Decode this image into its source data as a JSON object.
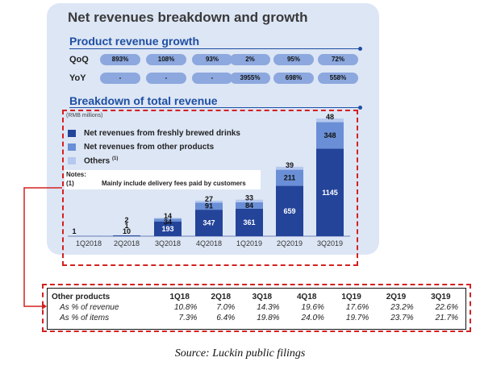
{
  "title": "Net revenues breakdown and growth",
  "growth": {
    "heading": "Product revenue growth",
    "rows": [
      {
        "label": "QoQ",
        "values": [
          "893%",
          "108%",
          "93%",
          "2%",
          "95%",
          "72%"
        ]
      },
      {
        "label": "YoY",
        "values": [
          "-",
          "-",
          "-",
          "3955%",
          "698%",
          "558%"
        ]
      }
    ]
  },
  "breakdown_heading": "Breakdown of total revenue",
  "notes": {
    "title": "Notes:",
    "num": "(1)",
    "text": "Mainly include delivery fees paid by customers"
  },
  "colors": {
    "drinks": "#24449a",
    "other_products": "#6a8fd6",
    "others": "#b5c8ee",
    "accent": "#1e4fa3",
    "dash": "#d42020"
  },
  "chart_data": {
    "type": "bar",
    "stacked": true,
    "unit_label": "(RMB millions)",
    "categories": [
      "1Q2018",
      "2Q2018",
      "3Q2018",
      "4Q2018",
      "1Q2019",
      "2Q2019",
      "3Q2019"
    ],
    "series": [
      {
        "name": "Net revenues from freshly brewed drinks",
        "values": [
          1,
          10,
          193,
          347,
          361,
          659,
          1145
        ]
      },
      {
        "name": "Net revenues from other products",
        "values": [
          0,
          1,
          34,
          91,
          84,
          211,
          348
        ]
      },
      {
        "name": "Others",
        "values": [
          0,
          2,
          14,
          27,
          33,
          39,
          48
        ]
      }
    ],
    "legend_sup": "(1)",
    "ylim": [
      0,
      1541
    ]
  },
  "table": {
    "headers": [
      "Other products",
      "1Q18",
      "2Q18",
      "3Q18",
      "4Q18",
      "1Q19",
      "2Q19",
      "3Q19"
    ],
    "rows": [
      {
        "label": "As % of revenue",
        "values": [
          "10.8%",
          "7.0%",
          "14.3%",
          "19.6%",
          "17.6%",
          "23.2%",
          "22.6%"
        ]
      },
      {
        "label": "As % of items",
        "values": [
          "7.3%",
          "6.4%",
          "19.8%",
          "24.0%",
          "19.7%",
          "23.7%",
          "21.7%"
        ]
      }
    ]
  },
  "source": "Source: Luckin public filings"
}
